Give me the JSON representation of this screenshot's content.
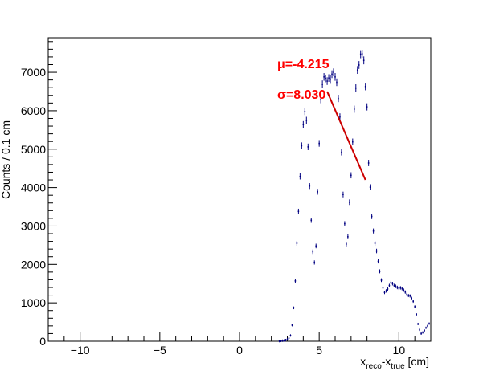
{
  "chart_data": {
    "type": "scatter",
    "title": "",
    "xlabel_main": "x",
    "xlabel_sub1": "reco",
    "xlabel_mid": "-x",
    "xlabel_sub2": "true",
    "xlabel_unit": " [cm]",
    "ylabel": "Counts / 0.1 cm",
    "xlim": [
      -12,
      12
    ],
    "ylim": [
      0,
      7900
    ],
    "xticks_major": [
      -10,
      -5,
      0,
      5,
      10
    ],
    "yticks_major": [
      0,
      1000,
      2000,
      3000,
      4000,
      5000,
      6000,
      7000
    ],
    "xtick_labels": [
      "−10",
      "−5",
      "0",
      "5",
      "10"
    ],
    "ytick_labels": [
      "0",
      "1000",
      "2000",
      "3000",
      "4000",
      "5000",
      "6000",
      "7000"
    ],
    "grid": false,
    "series": [
      {
        "color": "#000080",
        "marker": "point-with-error-bar",
        "points": [
          [
            2.5,
            5
          ],
          [
            2.6,
            10
          ],
          [
            2.7,
            15
          ],
          [
            2.8,
            20
          ],
          [
            2.9,
            30
          ],
          [
            3.0,
            50
          ],
          [
            3.1,
            80
          ],
          [
            3.2,
            150
          ],
          [
            3.3,
            420
          ],
          [
            3.4,
            870
          ],
          [
            3.5,
            1570
          ],
          [
            3.6,
            2550
          ],
          [
            3.7,
            3380
          ],
          [
            3.8,
            4290
          ],
          [
            3.9,
            5090
          ],
          [
            4.0,
            5640
          ],
          [
            4.1,
            5980
          ],
          [
            4.2,
            5750
          ],
          [
            4.3,
            5060
          ],
          [
            4.4,
            4040
          ],
          [
            4.5,
            3150
          ],
          [
            4.6,
            2330
          ],
          [
            4.7,
            2050
          ],
          [
            4.8,
            2480
          ],
          [
            4.9,
            3890
          ],
          [
            5.0,
            5150
          ],
          [
            5.1,
            6290
          ],
          [
            5.2,
            6690
          ],
          [
            5.3,
            6880
          ],
          [
            5.4,
            6840
          ],
          [
            5.5,
            6770
          ],
          [
            5.6,
            6850
          ],
          [
            5.7,
            6820
          ],
          [
            5.8,
            6950
          ],
          [
            5.9,
            7000
          ],
          [
            6.0,
            6880
          ],
          [
            6.1,
            6740
          ],
          [
            6.2,
            6320
          ],
          [
            6.3,
            5840
          ],
          [
            6.4,
            4920
          ],
          [
            6.5,
            3820
          ],
          [
            6.6,
            3060
          ],
          [
            6.7,
            2530
          ],
          [
            6.8,
            2720
          ],
          [
            6.9,
            3620
          ],
          [
            7.0,
            4320
          ],
          [
            7.1,
            5190
          ],
          [
            7.2,
            6040
          ],
          [
            7.3,
            6590
          ],
          [
            7.4,
            7060
          ],
          [
            7.5,
            7190
          ],
          [
            7.6,
            7470
          ],
          [
            7.7,
            7480
          ],
          [
            7.8,
            7310
          ],
          [
            7.9,
            6630
          ],
          [
            8.0,
            6100
          ],
          [
            8.1,
            4640
          ],
          [
            8.2,
            4010
          ],
          [
            8.3,
            3250
          ],
          [
            8.4,
            2870
          ],
          [
            8.5,
            2550
          ],
          [
            8.6,
            2350
          ],
          [
            8.7,
            2080
          ],
          [
            8.8,
            1820
          ],
          [
            8.9,
            1590
          ],
          [
            9.0,
            1390
          ],
          [
            9.1,
            1270
          ],
          [
            9.2,
            1310
          ],
          [
            9.3,
            1360
          ],
          [
            9.4,
            1450
          ],
          [
            9.5,
            1530
          ],
          [
            9.6,
            1500
          ],
          [
            9.7,
            1450
          ],
          [
            9.8,
            1430
          ],
          [
            9.9,
            1400
          ],
          [
            10.0,
            1380
          ],
          [
            10.1,
            1390
          ],
          [
            10.2,
            1370
          ],
          [
            10.3,
            1330
          ],
          [
            10.4,
            1280
          ],
          [
            10.5,
            1220
          ],
          [
            10.6,
            1190
          ],
          [
            10.7,
            1180
          ],
          [
            10.8,
            1120
          ],
          [
            10.9,
            1040
          ],
          [
            11.0,
            900
          ],
          [
            11.1,
            700
          ],
          [
            11.2,
            450
          ],
          [
            11.3,
            300
          ],
          [
            11.4,
            200
          ],
          [
            11.5,
            230
          ],
          [
            11.6,
            280
          ],
          [
            11.7,
            350
          ],
          [
            11.8,
            400
          ],
          [
            11.9,
            460
          ]
        ]
      }
    ],
    "fit_line": {
      "color": "#cc0000",
      "x": [
        5.5,
        7.9
      ],
      "y": [
        6500,
        4200
      ]
    },
    "annotations": {
      "mu_text": "μ=-4.215",
      "sigma_text": "σ=8.030",
      "color": "#ff0000"
    }
  }
}
